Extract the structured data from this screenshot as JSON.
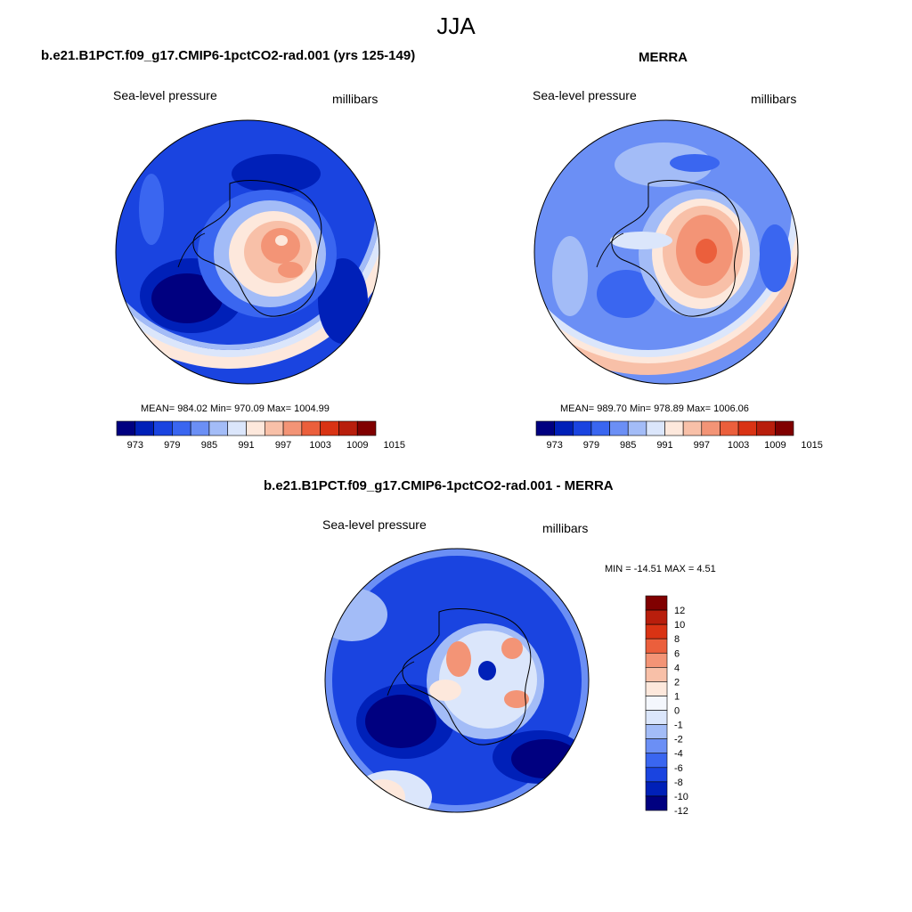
{
  "figure": {
    "title": "JJA"
  },
  "panels": [
    {
      "title": "b.e21.B1PCT.f09_g17.CMIP6-1pctCO2-rad.001 (yrs 125-149)",
      "left_label": "Sea-level pressure",
      "right_label": "millibars",
      "stats": "MEAN= 984.02  Min= 970.09  Max= 1004.99",
      "colorbar_ticks": [
        "973",
        "979",
        "985",
        "991",
        "997",
        "1003",
        "1009",
        "1015"
      ]
    },
    {
      "title": "MERRA",
      "left_label": "Sea-level pressure",
      "right_label": "millibars",
      "stats": "MEAN= 989.70  Min= 978.89  Max= 1006.06",
      "colorbar_ticks": [
        "973",
        "979",
        "985",
        "991",
        "997",
        "1003",
        "1009",
        "1015"
      ]
    },
    {
      "title": "b.e21.B1PCT.f09_g17.CMIP6-1pctCO2-rad.001 - MERRA",
      "left_label": "Sea-level pressure",
      "right_label": "millibars",
      "stats": "MIN = -14.51 MAX =   4.51",
      "colorbar_ticks": [
        "12",
        "10",
        "8",
        "6",
        "4",
        "2",
        "1",
        "0",
        "-1",
        "-2",
        "-4",
        "-6",
        "-8",
        "-10",
        "-12"
      ]
    }
  ],
  "colors": {
    "abs_scale": [
      "#000080",
      "#0020b8",
      "#1a44e0",
      "#3a66f0",
      "#6b8ff5",
      "#a3bcf7",
      "#dbe6fb",
      "#fde8dc",
      "#f8c0a8",
      "#f39476",
      "#eb5f3c",
      "#d93314",
      "#b81e0c",
      "#800000"
    ],
    "diff_scale": [
      "#000080",
      "#0020b8",
      "#1a44e0",
      "#3a66f0",
      "#6b8ff5",
      "#a3bcf7",
      "#dbe6fb",
      "#f4f7fd",
      "#fde8dc",
      "#f8c0a8",
      "#f39476",
      "#eb5f3c",
      "#d93314",
      "#b81e0c",
      "#800000"
    ]
  }
}
